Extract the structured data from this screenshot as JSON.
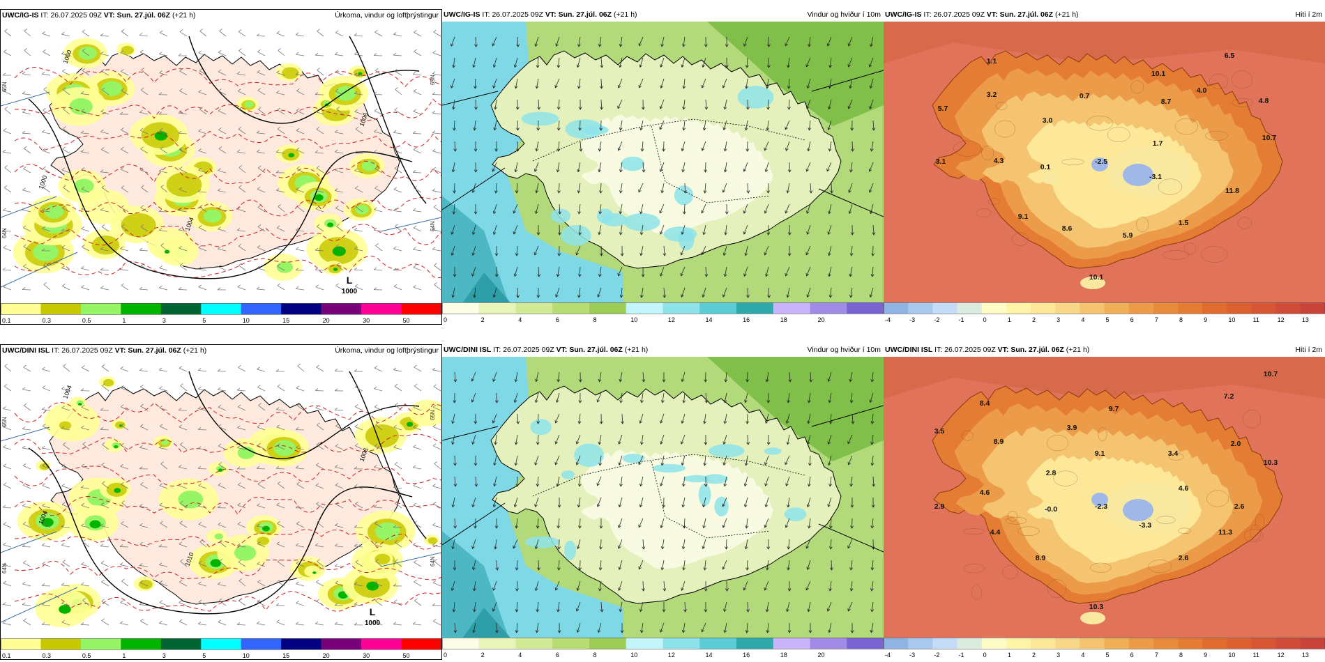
{
  "rows": [
    {
      "model": "UWC/IG-IS",
      "init_label": "IT:",
      "init_time": "26.07.2025 09Z",
      "valid_label": "VT:",
      "valid_time": "Sun. 27.júl. 06Z",
      "lead": "(+21 h)",
      "pressure_low": {
        "letter": "L",
        "value": "1000"
      },
      "isobar_labels": [
        "1000",
        "1006",
        "1000",
        "1004"
      ],
      "lat_labels": [
        "65N",
        "65N",
        "64N",
        "64N"
      ],
      "temp_labels": [
        "1.1",
        "6.5",
        "10.1",
        "4.0",
        "3.2",
        "0.7",
        "8.7",
        "4.8",
        "5.7",
        "3.0",
        "1.7",
        "10.7",
        "3.1",
        "4.3",
        "0.1",
        "-2.5",
        "-3.1",
        "11.8",
        "9.1",
        "8.6",
        "5.9",
        "1.5",
        "10.1"
      ]
    },
    {
      "model": "UWC/DINI ISL",
      "init_label": "IT:",
      "init_time": "26.07.2025 09Z",
      "valid_label": "VT:",
      "valid_time": "Sun. 27.júl. 06Z",
      "lead": "(+21 h)",
      "pressure_low": {
        "letter": "L",
        "value": "1000"
      },
      "isobar_labels": [
        "1004",
        "1006",
        "1004",
        "1010"
      ],
      "lat_labels": [
        "65N",
        "65N",
        "64N",
        "64N"
      ],
      "temp_labels": [
        "10.7",
        "7.2",
        "8.4",
        "9.7",
        "3.5",
        "3.9",
        "8.9",
        "2.0",
        "9.1",
        "3.4",
        "10.3",
        "2.8",
        "4.6",
        "4.6",
        "2.9",
        "-0.0",
        "-2.3",
        "2.6",
        "-3.3",
        "4.4",
        "11.3",
        "8.9",
        "2.6",
        "10.3"
      ]
    }
  ],
  "panels": {
    "precip": {
      "title": "Úrkoma, vindur og loftþrýstingur"
    },
    "wind": {
      "title": "Vindur og hviður í 10m"
    },
    "temp": {
      "title": "Hiti í 2m"
    }
  },
  "colorbars": {
    "precip": {
      "ticks": [
        "0.1",
        "0.3",
        "0.5",
        "1",
        "3",
        "5",
        "10",
        "15",
        "20",
        "30",
        "50"
      ],
      "colors": [
        "#ffff96",
        "#c8c800",
        "#96f564",
        "#00b400",
        "#006432",
        "#00ffff",
        "#3264ff",
        "#000080",
        "#780078",
        "#ff0096",
        "#ff0000"
      ]
    },
    "wind": {
      "ticks": [
        "0",
        "2",
        "4",
        "6",
        "8",
        "10",
        "12",
        "14",
        "16",
        "18",
        "20"
      ],
      "colors": [
        "#fbfde7",
        "#e8f4b8",
        "#d2ea96",
        "#b7dc74",
        "#9ccb56",
        "#c2f6fa",
        "#8ee3ea",
        "#5ccdd4",
        "#2ea8a8",
        "#c8b4fa",
        "#a08ce6",
        "#7a64d2"
      ]
    },
    "temp": {
      "ticks": [
        "-4",
        "-3",
        "-2",
        "-1",
        "0",
        "1",
        "2",
        "3",
        "4",
        "5",
        "6",
        "7",
        "8",
        "9",
        "10",
        "11",
        "12",
        "13"
      ],
      "colors": [
        "#8fb4e3",
        "#a8c8ee",
        "#c4dcf6",
        "#dcebe0",
        "#fffcc8",
        "#fff4a8",
        "#fde89a",
        "#f8d888",
        "#f4c470",
        "#f0b058",
        "#ec9c48",
        "#e88c3c",
        "#e47c34",
        "#e06c30",
        "#dc6030",
        "#d85634",
        "#d04c38",
        "#c8443a"
      ]
    }
  },
  "map_colors": {
    "land_tint": "#fde9dd",
    "ocean": "#ffffff",
    "isobar_dashed": "#d02020",
    "isobar_solid": "#000000",
    "wind_sea": "#7fd8e6",
    "wind_land": "#b2d97a",
    "wind_dark": "#7fbf4a",
    "temp_sea": "#e0735a",
    "temp_land": "#ef9a3a",
    "temp_interior": "#f8e8a0",
    "ice": "#9fb8e8"
  }
}
